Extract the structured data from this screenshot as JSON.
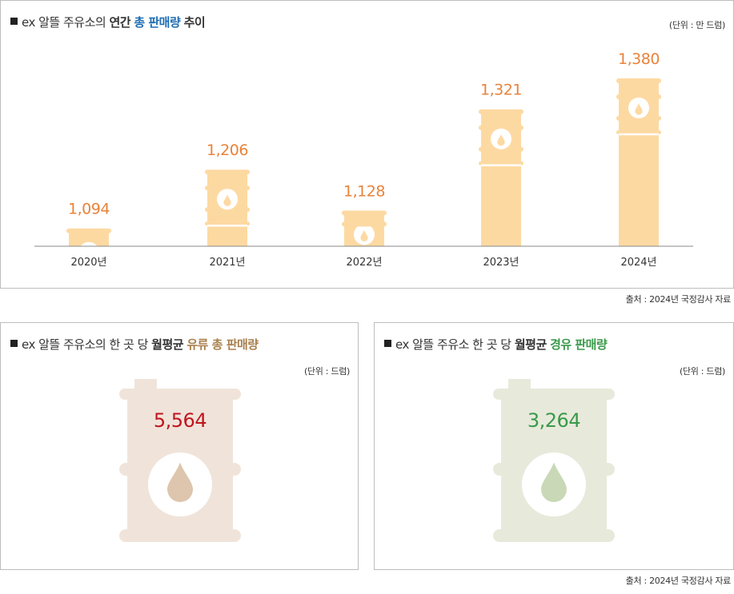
{
  "top": {
    "title_prefix": "ex 알뜰 주유소의",
    "title_bold": "연간",
    "title_highlight": "총 판매량",
    "title_suffix": "추이",
    "unit": "(단위 : 만 드럼)"
  },
  "chart_data": {
    "type": "bar",
    "categories": [
      "2020년",
      "2021년",
      "2022년",
      "2023년",
      "2024년"
    ],
    "values": [
      1094,
      1206,
      1128,
      1321,
      1380
    ],
    "value_labels": [
      "1,094",
      "1,206",
      "1,128",
      "1,321",
      "1,380"
    ],
    "title": "ex 알뜰 주유소의 연간 총 판매량 추이",
    "ylabel": "",
    "xlabel": "",
    "bar_color": "#fdd9a2",
    "label_color": "#e8833a",
    "icon": "oil-barrel-icon"
  },
  "source_top": "출처 : 2024년 국정감사 자료",
  "left": {
    "title_prefix": "ex 알뜰 주유소의 한 곳 당",
    "title_bold": "월평균",
    "title_highlight": "유류 총 판매량",
    "unit": "(단위 : 드럼)",
    "value": "5,564",
    "value_color": "#c0161e",
    "barrel_color": "#f0e4da",
    "drop_color": "#ddc6ad",
    "icon": "oil-barrel-icon"
  },
  "right": {
    "title_prefix": "ex 알뜰 주유소 한 곳 당",
    "title_bold": "월평균",
    "title_highlight": "경유 판매량",
    "unit": "(단위 : 드럼)",
    "value": "3,264",
    "value_color": "#3a9a4a",
    "barrel_color": "#e7eadb",
    "drop_color": "#c9d8b6",
    "icon": "oil-barrel-icon"
  },
  "source_bottom": "출처 : 2024년 국정감사 자료"
}
